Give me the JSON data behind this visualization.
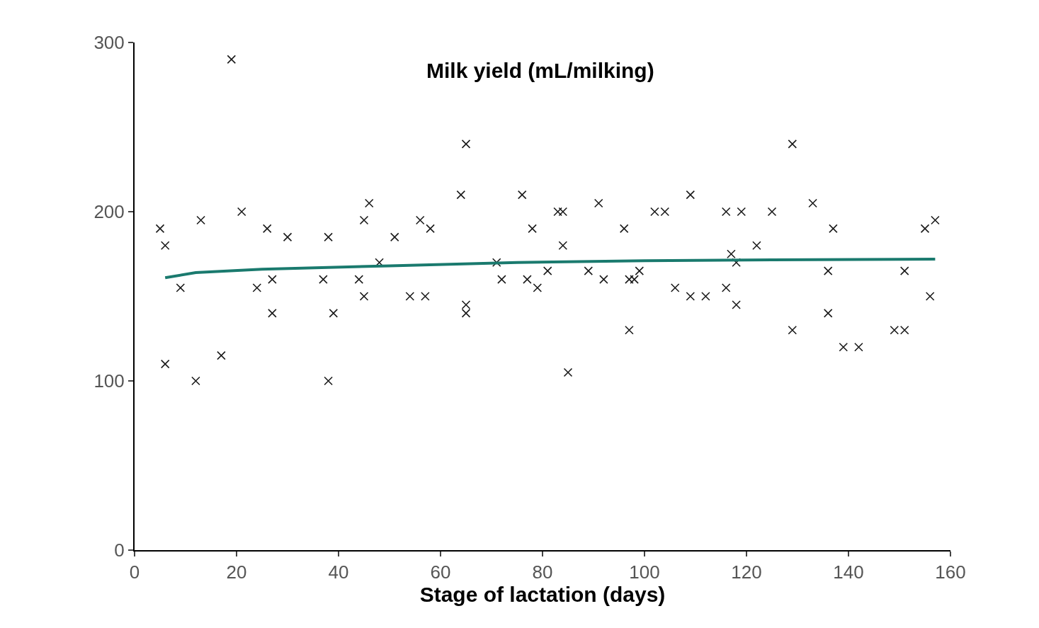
{
  "chart_data": {
    "type": "scatter",
    "title": "Milk yield (mL/milking)",
    "xlabel": "Stage of lactation (days)",
    "xlim": [
      0,
      160
    ],
    "xticks": [
      0,
      20,
      40,
      60,
      80,
      100,
      120,
      140,
      160
    ],
    "ylim": [
      0,
      300
    ],
    "yticks": [
      0,
      100,
      200,
      300
    ],
    "marker": "cross",
    "series": [
      {
        "color": "#1a1a1a",
        "x": [
          5,
          6,
          9,
          6,
          12,
          13,
          17,
          19,
          21,
          26,
          24,
          27,
          27,
          30,
          37,
          38,
          38,
          39,
          44,
          45,
          46,
          45,
          48,
          51,
          54,
          57,
          56,
          58,
          64,
          65,
          65,
          65,
          71,
          72,
          76,
          77,
          78,
          79,
          81,
          83,
          84,
          84,
          85,
          89,
          91,
          92,
          96,
          97,
          97,
          98,
          99,
          102,
          104,
          106,
          109,
          109,
          112,
          116,
          116,
          117,
          118,
          118,
          119,
          122,
          125,
          129,
          129,
          133,
          136,
          137,
          136,
          139,
          142,
          149,
          151,
          151,
          155,
          157,
          156
        ],
        "values": [
          190,
          180,
          155,
          110,
          100,
          195,
          115,
          290,
          200,
          190,
          155,
          160,
          140,
          185,
          160,
          185,
          100,
          140,
          160,
          195,
          205,
          150,
          170,
          185,
          150,
          150,
          195,
          190,
          210,
          240,
          145,
          140,
          170,
          160,
          210,
          160,
          190,
          155,
          165,
          200,
          200,
          180,
          105,
          165,
          205,
          160,
          190,
          130,
          160,
          160,
          165,
          200,
          200,
          155,
          210,
          150,
          150,
          155,
          200,
          175,
          170,
          145,
          200,
          180,
          200,
          240,
          130,
          205,
          165,
          190,
          140,
          120,
          120,
          130,
          130,
          165,
          190,
          195,
          150
        ]
      },
      {
        "type": "line",
        "color": "#1a7a6e",
        "line_style": "solid",
        "marker": "none",
        "x": [
          6,
          12,
          25,
          50,
          75,
          100,
          125,
          157
        ],
        "values": [
          161,
          164,
          166,
          168,
          170,
          171,
          171.5,
          172
        ]
      }
    ]
  }
}
